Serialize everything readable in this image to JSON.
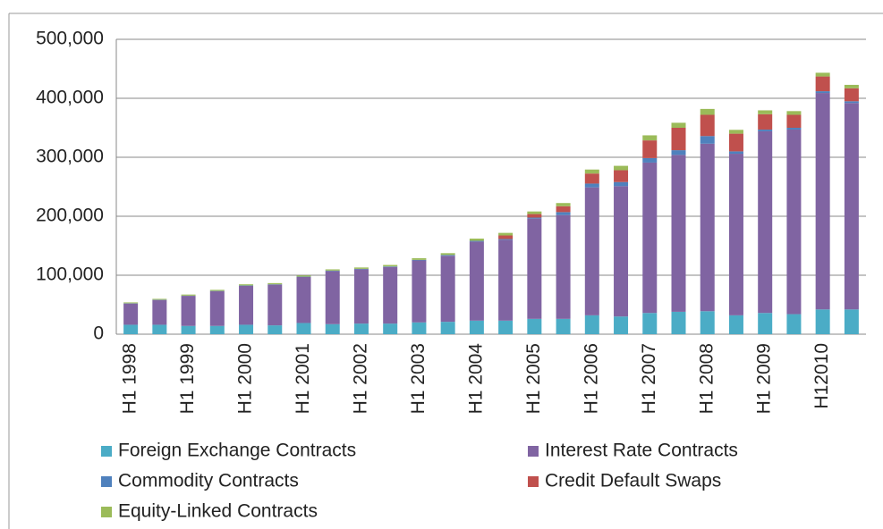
{
  "chart_data": {
    "type": "stacked_bar",
    "categories": [
      "H1 1998",
      null,
      "H1 1999",
      null,
      "H1 2000",
      null,
      "H1 2001",
      null,
      "H1 2002",
      null,
      "H1 2003",
      null,
      "H1 2004",
      null,
      "H1 2005",
      null,
      "H1 2006",
      null,
      "H1 2007",
      null,
      "H1 2008",
      null,
      "H1 2009",
      null,
      "H12010",
      null
    ],
    "series": [
      {
        "name": "Foreign Exchange Contracts",
        "color": "#4bacc6",
        "values": [
          16000,
          16000,
          14000,
          14000,
          16000,
          15000,
          19000,
          17000,
          18000,
          18000,
          20000,
          21000,
          23000,
          23000,
          26000,
          26000,
          32000,
          30000,
          36000,
          38000,
          39000,
          32000,
          36000,
          34000,
          42000,
          42000
        ]
      },
      {
        "name": "Interest Rate Contracts",
        "color": "#8064a2",
        "values": [
          36000,
          42000,
          51000,
          59000,
          66000,
          69000,
          78000,
          90000,
          92000,
          96000,
          105000,
          112000,
          134000,
          137000,
          170000,
          176000,
          217000,
          221000,
          255000,
          266000,
          284000,
          274000,
          308000,
          313000,
          367000,
          350000
        ]
      },
      {
        "name": "Commodity Contracts",
        "color": "#4f81bd",
        "values": [
          400,
          400,
          400,
          400,
          600,
          600,
          600,
          900,
          800,
          900,
          1000,
          1400,
          1300,
          1400,
          1700,
          5000,
          6400,
          7000,
          7600,
          8000,
          13000,
          4000,
          3000,
          3000,
          3000,
          3000
        ]
      },
      {
        "name": "Credit Default Swaps",
        "color": "#c0504d",
        "values": [
          0,
          0,
          0,
          0,
          0,
          0,
          0,
          0,
          0,
          0,
          0,
          0,
          0,
          6000,
          6000,
          10000,
          17000,
          20000,
          30000,
          38000,
          36000,
          30000,
          26000,
          22000,
          25000,
          22000
        ]
      },
      {
        "name": "Equity-Linked Contracts",
        "color": "#9bbb59",
        "values": [
          1500,
          1500,
          1800,
          1800,
          2000,
          2000,
          2000,
          2000,
          2300,
          2500,
          2800,
          3000,
          3800,
          4400,
          4400,
          5400,
          6800,
          7500,
          8600,
          8500,
          10000,
          6500,
          6600,
          6300,
          6300,
          5800
        ]
      }
    ],
    "ylim": [
      0,
      500000
    ],
    "yticks": [
      0,
      {
        "value": 100000,
        "label": "100,000"
      },
      {
        "value": 200000,
        "label": "200,000"
      },
      {
        "value": 300000,
        "label": "300,000"
      },
      {
        "value": 400000,
        "label": "400,000"
      },
      {
        "value": 500000,
        "label": "500,000"
      }
    ],
    "grid": true,
    "legend": "bottom"
  }
}
